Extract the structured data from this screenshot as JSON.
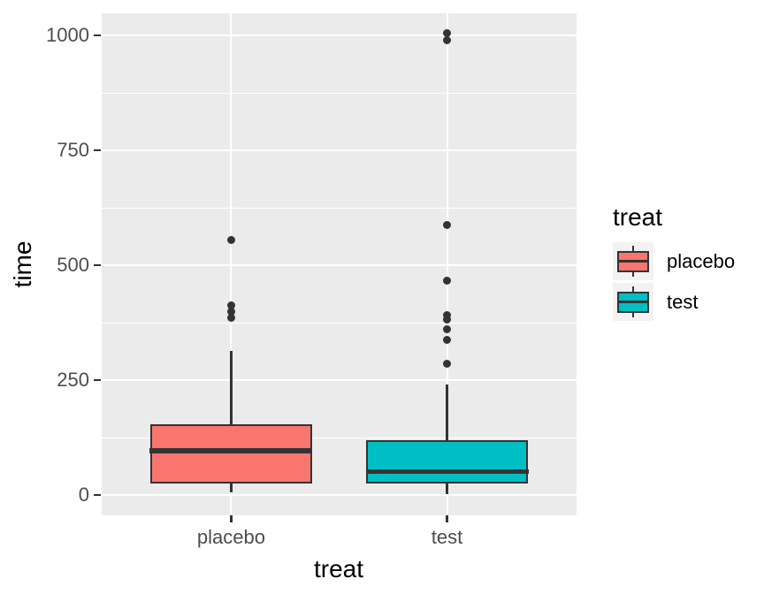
{
  "figure": {
    "background": "#FFFFFF",
    "panel_background": "#EBEBEB",
    "grid_color": "#FFFFFF",
    "stroke_color": "#333333",
    "tick_label_color": "#4D4D4D",
    "title_color": "#000000",
    "legend_key_background": "#F2F2F2"
  },
  "chart_data": {
    "type": "boxplot",
    "title": "",
    "xlabel": "treat",
    "ylabel": "time",
    "categories": [
      "placebo",
      "test"
    ],
    "y_axis": {
      "tick_values": [
        0,
        250,
        500,
        750,
        1000
      ],
      "tick_labels": [
        "0",
        "250",
        "500",
        "750",
        "1000"
      ],
      "minor_tick_values": [
        125,
        375,
        625,
        875
      ],
      "range": [
        -45,
        1050
      ]
    },
    "grid": "on",
    "legend": {
      "title": "treat",
      "position": "right",
      "entries": [
        {
          "label": "placebo",
          "color": "#F8766D"
        },
        {
          "label": "test",
          "color": "#00BFC4"
        }
      ]
    },
    "series": [
      {
        "name": "placebo",
        "color": "#F8766D",
        "stats": {
          "whisker_low": 6,
          "q1": 25,
          "median": 95,
          "q3": 154,
          "whisker_high": 313
        },
        "outliers": [
          385,
          400,
          413,
          554
        ]
      },
      {
        "name": "test",
        "color": "#00BFC4",
        "stats": {
          "whisker_low": 1,
          "q1": 25,
          "median": 50,
          "q3": 119,
          "whisker_high": 240
        },
        "outliers": [
          285,
          338,
          360,
          381,
          392,
          467,
          588,
          990,
          1004
        ]
      }
    ]
  }
}
